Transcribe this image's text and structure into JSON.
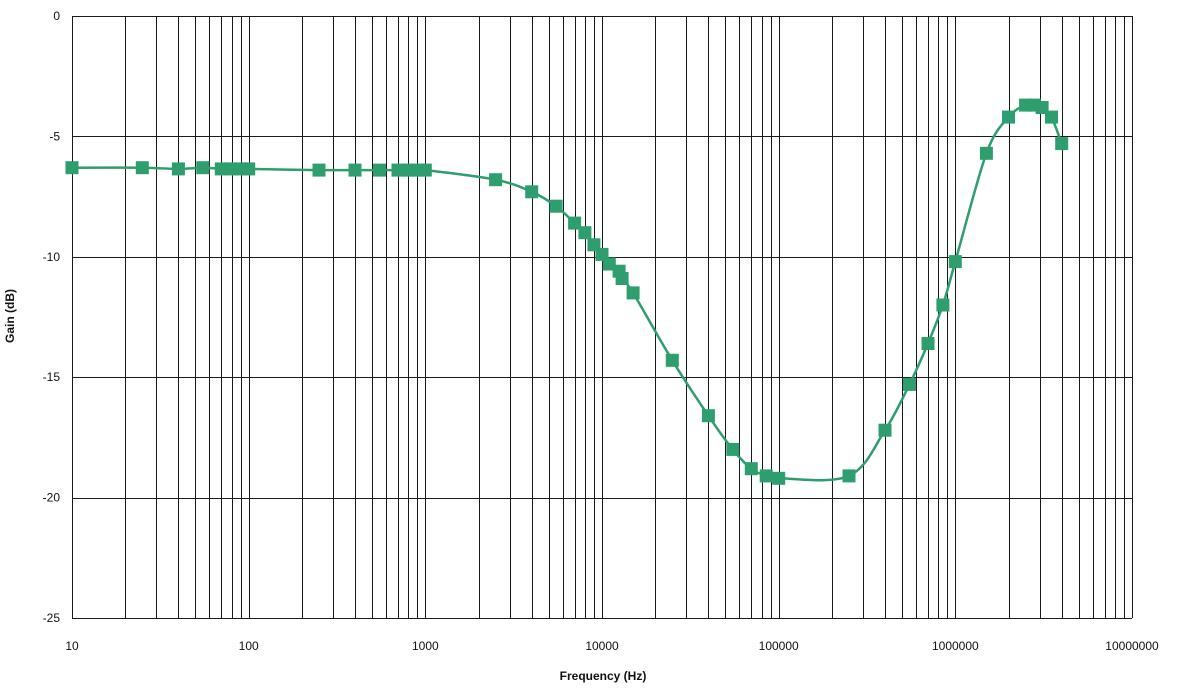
{
  "chart_data": {
    "type": "line",
    "title": "",
    "xlabel": "Frequency (Hz)",
    "ylabel": "Gain (dB)",
    "x_scale": "log",
    "xlim": [
      10,
      10000000
    ],
    "ylim": [
      -25,
      0
    ],
    "x_ticks": [
      "10",
      "100",
      "1000",
      "10000",
      "100000",
      "1000000",
      "10000000"
    ],
    "y_ticks": [
      "0",
      "-5",
      "-10",
      "-15",
      "-20",
      "-25"
    ],
    "grid": true,
    "legend": "none",
    "marker": "square",
    "series_color": "#2e9e6e",
    "series": [
      {
        "points": [
          [
            10,
            -6.3
          ],
          [
            25,
            -6.3
          ],
          [
            40,
            -6.35
          ],
          [
            55,
            -6.3
          ],
          [
            70,
            -6.35
          ],
          [
            80,
            -6.35
          ],
          [
            90,
            -6.35
          ],
          [
            100,
            -6.35
          ],
          [
            250,
            -6.4
          ],
          [
            400,
            -6.4
          ],
          [
            550,
            -6.4
          ],
          [
            700,
            -6.4
          ],
          [
            800,
            -6.4
          ],
          [
            900,
            -6.4
          ],
          [
            1000,
            -6.4
          ],
          [
            2500,
            -6.8
          ],
          [
            4000,
            -7.3
          ],
          [
            5500,
            -7.9
          ],
          [
            7000,
            -8.6
          ],
          [
            8000,
            -9.0
          ],
          [
            9000,
            -9.5
          ],
          [
            10000,
            -9.9
          ],
          [
            11000,
            -10.3
          ],
          [
            12500,
            -10.6
          ],
          [
            13000,
            -10.9
          ],
          [
            15000,
            -11.5
          ],
          [
            25000,
            -14.3
          ],
          [
            40000,
            -16.6
          ],
          [
            55000,
            -18.0
          ],
          [
            70000,
            -18.8
          ],
          [
            85000,
            -19.1
          ],
          [
            100000,
            -19.2
          ],
          [
            250000,
            -19.1
          ],
          [
            400000,
            -17.2
          ],
          [
            550000,
            -15.3
          ],
          [
            700000,
            -13.6
          ],
          [
            850000,
            -12.0
          ],
          [
            1000000,
            -10.2
          ],
          [
            1500000,
            -5.7
          ],
          [
            2000000,
            -4.2
          ],
          [
            2500000,
            -3.7
          ],
          [
            2800000,
            -3.7
          ],
          [
            3100000,
            -3.8
          ],
          [
            3500000,
            -4.2
          ],
          [
            4000000,
            -5.3
          ]
        ]
      }
    ]
  }
}
